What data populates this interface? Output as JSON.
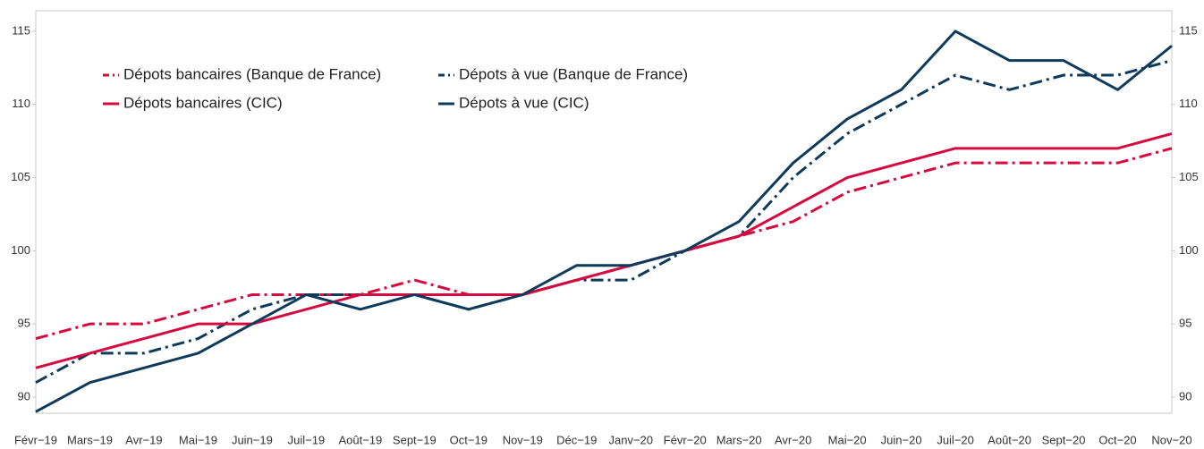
{
  "chart_data": {
    "type": "line",
    "categories": [
      "Févr−19",
      "Mars−19",
      "Avr−19",
      "Mai−19",
      "Juin−19",
      "Juil−19",
      "Août−19",
      "Sept−19",
      "Oct−19",
      "Nov−19",
      "Déc−19",
      "Janv−20",
      "Févr−20",
      "Mars−20",
      "Avr−20",
      "Mai−20",
      "Juin−20",
      "Juil−20",
      "Août−20",
      "Sept−20",
      "Oct−20",
      "Nov−20"
    ],
    "series": [
      {
        "name": "Dépots bancaires (Banque de France)",
        "color": "#d50a3f",
        "line_style": "dash-dot",
        "values": [
          94,
          95,
          95,
          96,
          97,
          97,
          97,
          98,
          97,
          97,
          98,
          99,
          100,
          101,
          102,
          104,
          105,
          106,
          106,
          106,
          106,
          107
        ]
      },
      {
        "name": "Dépots à vue (Banque de France)",
        "color": "#0e3a5b",
        "line_style": "dash-dot",
        "values": [
          91,
          93,
          93,
          94,
          96,
          97,
          97,
          97,
          96,
          97,
          98,
          98,
          100,
          101,
          105,
          108,
          110,
          112,
          111,
          112,
          112,
          113
        ]
      },
      {
        "name": "Dépots bancaires (CIC)",
        "color": "#d50a3f",
        "line_style": "solid",
        "values": [
          92,
          93,
          94,
          95,
          95,
          96,
          97,
          97,
          97,
          97,
          98,
          99,
          100,
          101,
          103,
          105,
          106,
          107,
          107,
          107,
          107,
          108
        ]
      },
      {
        "name": "Dépots à vue (CIC)",
        "color": "#0e3a5b",
        "line_style": "solid",
        "values": [
          89,
          91,
          92,
          93,
          95,
          97,
          96,
          97,
          96,
          97,
          99,
          99,
          100,
          102,
          106,
          109,
          111,
          115,
          113,
          113,
          111,
          114
        ]
      }
    ],
    "ylim": [
      88.9,
      116.4
    ],
    "yticks": [
      90,
      95,
      100,
      105,
      110,
      115
    ],
    "grid": false,
    "legend": "upper left"
  }
}
